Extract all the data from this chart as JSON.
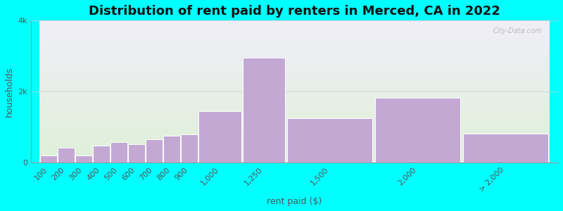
{
  "title": "Distribution of rent paid by renters in Merced, CA in 2022",
  "xlabel": "rent paid ($)",
  "ylabel": "households",
  "background_color": "#00ffff",
  "plot_bg_top": "#dff0d8",
  "plot_bg_bottom": "#f0eef8",
  "bar_color": "#c4a8d4",
  "bar_edge_color": "#ffffff",
  "categories": [
    "100",
    "200",
    "300",
    "400",
    "500",
    "600",
    "700",
    "800",
    "900",
    "1,000",
    "1,250",
    "1,500",
    "2,000",
    "> 2,000"
  ],
  "left_edges": [
    100,
    200,
    300,
    400,
    500,
    600,
    700,
    800,
    900,
    1000,
    1250,
    1500,
    2000,
    2500
  ],
  "widths": [
    100,
    100,
    100,
    100,
    100,
    100,
    100,
    100,
    100,
    250,
    250,
    500,
    500,
    500
  ],
  "values": [
    200,
    420,
    200,
    480,
    570,
    520,
    660,
    760,
    800,
    1450,
    2950,
    1250,
    1820,
    820
  ],
  "ylim": [
    0,
    4000
  ],
  "yticks": [
    0,
    2000,
    4000
  ],
  "ytick_labels": [
    "0",
    "2k",
    "4k"
  ],
  "title_fontsize": 13,
  "axis_label_fontsize": 9,
  "tick_fontsize": 8
}
